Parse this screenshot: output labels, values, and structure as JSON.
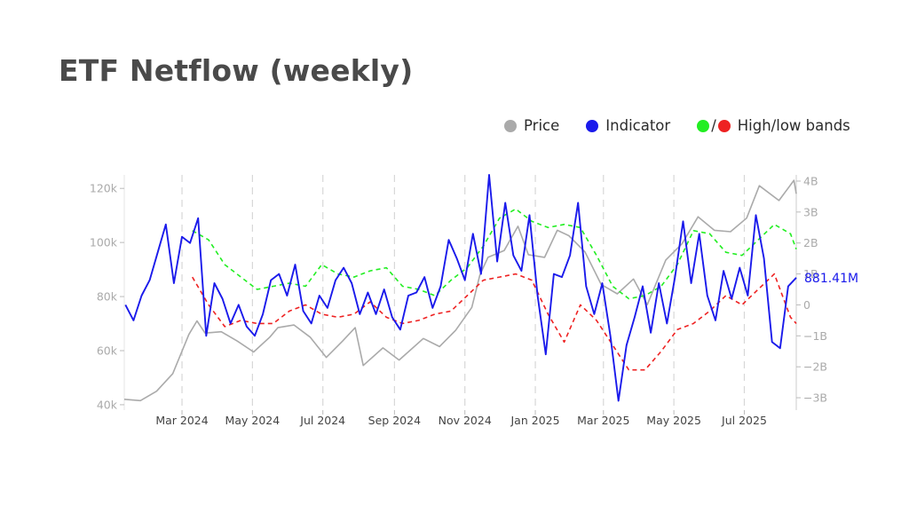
{
  "title": "ETF Netflow (weekly)",
  "legend": {
    "price": "Price",
    "indicator": "Indicator",
    "bands_slash": "/",
    "bands": "High/low bands"
  },
  "colors": {
    "price": "#aaaaaa",
    "indicator": "#1a1aeb",
    "high_band": "#22ee22",
    "low_band": "#ee2222"
  },
  "chart_data": {
    "type": "line",
    "x_axis": {
      "type": "date",
      "range": [
        "2024-01-11",
        "2025-08-15"
      ],
      "tick_labels": [
        "Mar 2024",
        "May 2024",
        "Jul 2024",
        "Sep 2024",
        "Nov 2024",
        "Jan 2025",
        "Mar 2025",
        "May 2025",
        "Jul 2025"
      ],
      "tick_dates": [
        "2024-03-01",
        "2024-05-01",
        "2024-07-01",
        "2024-09-01",
        "2024-11-01",
        "2025-01-01",
        "2025-03-01",
        "2025-05-01",
        "2025-07-01"
      ]
    },
    "y_left": {
      "series": "Price",
      "range": [
        38000,
        125000
      ],
      "ticks": [
        40000,
        60000,
        80000,
        100000,
        120000
      ],
      "tick_labels": [
        "40k",
        "60k",
        "80k",
        "100k",
        "120k"
      ]
    },
    "y_right": {
      "series": [
        "Indicator",
        "High/low bands"
      ],
      "range": [
        -3.4,
        4.2
      ],
      "ticks": [
        -3,
        -2,
        -1,
        0,
        1,
        2,
        3,
        4
      ],
      "tick_labels": [
        "−3B",
        "−2B",
        "−1B",
        "0",
        "1B",
        "2B",
        "3B",
        "4B"
      ]
    },
    "last_value_label": "881.41M",
    "series": [
      {
        "name": "Price",
        "axis": "left",
        "points": [
          [
            "2024-01-11",
            42000
          ],
          [
            "2024-01-25",
            41500
          ],
          [
            "2024-02-08",
            45000
          ],
          [
            "2024-02-22",
            51500
          ],
          [
            "2024-03-07",
            66000
          ],
          [
            "2024-03-14",
            71000
          ],
          [
            "2024-03-21",
            66500
          ],
          [
            "2024-04-04",
            67000
          ],
          [
            "2024-04-18",
            63500
          ],
          [
            "2024-05-02",
            59500
          ],
          [
            "2024-05-16",
            65000
          ],
          [
            "2024-05-23",
            68500
          ],
          [
            "2024-06-06",
            69500
          ],
          [
            "2024-06-20",
            65000
          ],
          [
            "2024-07-04",
            57500
          ],
          [
            "2024-07-18",
            63500
          ],
          [
            "2024-07-29",
            68500
          ],
          [
            "2024-08-05",
            54500
          ],
          [
            "2024-08-22",
            61000
          ],
          [
            "2024-09-05",
            56500
          ],
          [
            "2024-09-26",
            64500
          ],
          [
            "2024-10-10",
            61500
          ],
          [
            "2024-10-24",
            67500
          ],
          [
            "2024-11-07",
            76000
          ],
          [
            "2024-11-14",
            88000
          ],
          [
            "2024-11-21",
            94500
          ],
          [
            "2024-12-05",
            97000
          ],
          [
            "2024-12-17",
            106000
          ],
          [
            "2024-12-26",
            95500
          ],
          [
            "2025-01-09",
            94500
          ],
          [
            "2025-01-20",
            104500
          ],
          [
            "2025-01-30",
            102500
          ],
          [
            "2025-02-13",
            96500
          ],
          [
            "2025-02-27",
            84500
          ],
          [
            "2025-03-13",
            81000
          ],
          [
            "2025-03-27",
            86500
          ],
          [
            "2025-04-08",
            77000
          ],
          [
            "2025-04-24",
            93500
          ],
          [
            "2025-05-08",
            99500
          ],
          [
            "2025-05-22",
            109500
          ],
          [
            "2025-06-05",
            104500
          ],
          [
            "2025-06-19",
            104000
          ],
          [
            "2025-07-03",
            109000
          ],
          [
            "2025-07-14",
            121000
          ],
          [
            "2025-07-31",
            115500
          ],
          [
            "2025-08-13",
            123000
          ],
          [
            "2025-08-15",
            118000
          ]
        ]
      },
      {
        "name": "Indicator",
        "axis": "right",
        "unit": "B",
        "points": [
          [
            "2024-01-12",
            0.0
          ],
          [
            "2024-01-19",
            -0.5
          ],
          [
            "2024-01-26",
            0.3
          ],
          [
            "2024-02-02",
            0.8
          ],
          [
            "2024-02-09",
            1.7
          ],
          [
            "2024-02-16",
            2.6
          ],
          [
            "2024-02-23",
            0.7
          ],
          [
            "2024-03-01",
            2.2
          ],
          [
            "2024-03-08",
            2.0
          ],
          [
            "2024-03-15",
            2.8
          ],
          [
            "2024-03-22",
            -1.0
          ],
          [
            "2024-03-29",
            0.7
          ],
          [
            "2024-04-05",
            0.2
          ],
          [
            "2024-04-12",
            -0.6
          ],
          [
            "2024-04-19",
            0.0
          ],
          [
            "2024-04-26",
            -0.7
          ],
          [
            "2024-05-03",
            -1.0
          ],
          [
            "2024-05-10",
            -0.3
          ],
          [
            "2024-05-17",
            0.8
          ],
          [
            "2024-05-24",
            1.0
          ],
          [
            "2024-05-31",
            0.3
          ],
          [
            "2024-06-07",
            1.3
          ],
          [
            "2024-06-14",
            -0.2
          ],
          [
            "2024-06-21",
            -0.6
          ],
          [
            "2024-06-28",
            0.3
          ],
          [
            "2024-07-05",
            -0.1
          ],
          [
            "2024-07-12",
            0.8
          ],
          [
            "2024-07-19",
            1.2
          ],
          [
            "2024-07-26",
            0.7
          ],
          [
            "2024-08-02",
            -0.3
          ],
          [
            "2024-08-09",
            0.4
          ],
          [
            "2024-08-16",
            -0.3
          ],
          [
            "2024-08-23",
            0.5
          ],
          [
            "2024-08-30",
            -0.4
          ],
          [
            "2024-09-06",
            -0.8
          ],
          [
            "2024-09-13",
            0.3
          ],
          [
            "2024-09-20",
            0.4
          ],
          [
            "2024-09-27",
            0.9
          ],
          [
            "2024-10-04",
            -0.1
          ],
          [
            "2024-10-11",
            0.6
          ],
          [
            "2024-10-18",
            2.1
          ],
          [
            "2024-10-25",
            1.5
          ],
          [
            "2024-11-01",
            0.8
          ],
          [
            "2024-11-08",
            2.3
          ],
          [
            "2024-11-15",
            1.0
          ],
          [
            "2024-11-22",
            4.2
          ],
          [
            "2024-11-29",
            1.4
          ],
          [
            "2024-12-06",
            3.3
          ],
          [
            "2024-12-13",
            1.6
          ],
          [
            "2024-12-20",
            1.1
          ],
          [
            "2024-12-27",
            2.9
          ],
          [
            "2025-01-03",
            0.3
          ],
          [
            "2025-01-10",
            -1.6
          ],
          [
            "2025-01-17",
            1.0
          ],
          [
            "2025-01-24",
            0.9
          ],
          [
            "2025-01-31",
            1.6
          ],
          [
            "2025-02-07",
            3.3
          ],
          [
            "2025-02-14",
            0.6
          ],
          [
            "2025-02-21",
            -0.3
          ],
          [
            "2025-02-28",
            0.7
          ],
          [
            "2025-03-07",
            -1.0
          ],
          [
            "2025-03-14",
            -3.1
          ],
          [
            "2025-03-21",
            -1.3
          ],
          [
            "2025-03-28",
            -0.4
          ],
          [
            "2025-04-04",
            0.6
          ],
          [
            "2025-04-11",
            -0.9
          ],
          [
            "2025-04-18",
            0.7
          ],
          [
            "2025-04-25",
            -0.6
          ],
          [
            "2025-05-02",
            0.9
          ],
          [
            "2025-05-09",
            2.7
          ],
          [
            "2025-05-16",
            0.7
          ],
          [
            "2025-05-23",
            2.3
          ],
          [
            "2025-05-30",
            0.3
          ],
          [
            "2025-06-06",
            -0.5
          ],
          [
            "2025-06-13",
            1.1
          ],
          [
            "2025-06-20",
            0.2
          ],
          [
            "2025-06-27",
            1.2
          ],
          [
            "2025-07-04",
            0.3
          ],
          [
            "2025-07-11",
            2.9
          ],
          [
            "2025-07-18",
            1.5
          ],
          [
            "2025-07-25",
            -1.2
          ],
          [
            "2025-08-01",
            -1.4
          ],
          [
            "2025-08-08",
            0.6
          ],
          [
            "2025-08-15",
            0.88
          ]
        ]
      },
      {
        "name": "High band",
        "axis": "right",
        "unit": "B",
        "points": [
          [
            "2024-03-10",
            2.4
          ],
          [
            "2024-03-24",
            2.1
          ],
          [
            "2024-04-07",
            1.3
          ],
          [
            "2024-04-21",
            0.9
          ],
          [
            "2024-05-05",
            0.5
          ],
          [
            "2024-05-19",
            0.6
          ],
          [
            "2024-06-02",
            0.7
          ],
          [
            "2024-06-16",
            0.6
          ],
          [
            "2024-06-30",
            1.3
          ],
          [
            "2024-07-14",
            1.0
          ],
          [
            "2024-07-28",
            0.9
          ],
          [
            "2024-08-11",
            1.1
          ],
          [
            "2024-08-25",
            1.2
          ],
          [
            "2024-09-08",
            0.6
          ],
          [
            "2024-09-22",
            0.5
          ],
          [
            "2024-10-06",
            0.3
          ],
          [
            "2024-10-20",
            0.8
          ],
          [
            "2024-11-03",
            1.2
          ],
          [
            "2024-11-17",
            1.9
          ],
          [
            "2024-12-01",
            2.8
          ],
          [
            "2024-12-15",
            3.1
          ],
          [
            "2024-12-29",
            2.7
          ],
          [
            "2025-01-12",
            2.5
          ],
          [
            "2025-01-26",
            2.6
          ],
          [
            "2025-02-09",
            2.5
          ],
          [
            "2025-02-23",
            1.6
          ],
          [
            "2025-03-09",
            0.6
          ],
          [
            "2025-03-23",
            0.2
          ],
          [
            "2025-04-06",
            0.3
          ],
          [
            "2025-04-20",
            0.6
          ],
          [
            "2025-05-04",
            1.3
          ],
          [
            "2025-05-18",
            2.4
          ],
          [
            "2025-06-01",
            2.3
          ],
          [
            "2025-06-15",
            1.7
          ],
          [
            "2025-06-29",
            1.6
          ],
          [
            "2025-07-13",
            2.1
          ],
          [
            "2025-07-27",
            2.6
          ],
          [
            "2025-08-10",
            2.3
          ],
          [
            "2025-08-15",
            1.8
          ]
        ]
      },
      {
        "name": "Low band",
        "axis": "right",
        "unit": "B",
        "points": [
          [
            "2024-03-10",
            0.9
          ],
          [
            "2024-03-24",
            0.0
          ],
          [
            "2024-04-07",
            -0.7
          ],
          [
            "2024-04-21",
            -0.5
          ],
          [
            "2024-05-05",
            -0.6
          ],
          [
            "2024-05-19",
            -0.6
          ],
          [
            "2024-06-02",
            -0.2
          ],
          [
            "2024-06-16",
            0.0
          ],
          [
            "2024-06-30",
            -0.3
          ],
          [
            "2024-07-14",
            -0.4
          ],
          [
            "2024-07-28",
            -0.3
          ],
          [
            "2024-08-11",
            0.1
          ],
          [
            "2024-08-25",
            -0.4
          ],
          [
            "2024-09-08",
            -0.6
          ],
          [
            "2024-09-22",
            -0.5
          ],
          [
            "2024-10-06",
            -0.3
          ],
          [
            "2024-10-20",
            -0.2
          ],
          [
            "2024-11-03",
            0.3
          ],
          [
            "2024-11-17",
            0.8
          ],
          [
            "2024-12-01",
            0.9
          ],
          [
            "2024-12-15",
            1.0
          ],
          [
            "2024-12-29",
            0.8
          ],
          [
            "2025-01-12",
            -0.3
          ],
          [
            "2025-01-26",
            -1.2
          ],
          [
            "2025-02-09",
            0.0
          ],
          [
            "2025-02-23",
            -0.5
          ],
          [
            "2025-03-09",
            -1.3
          ],
          [
            "2025-03-23",
            -2.1
          ],
          [
            "2025-04-06",
            -2.1
          ],
          [
            "2025-04-20",
            -1.5
          ],
          [
            "2025-05-04",
            -0.8
          ],
          [
            "2025-05-18",
            -0.6
          ],
          [
            "2025-06-01",
            -0.2
          ],
          [
            "2025-06-15",
            0.3
          ],
          [
            "2025-06-29",
            0.0
          ],
          [
            "2025-07-13",
            0.5
          ],
          [
            "2025-07-27",
            1.0
          ],
          [
            "2025-08-10",
            -0.4
          ],
          [
            "2025-08-15",
            -0.6
          ]
        ]
      }
    ],
    "grid": {
      "vertical_dashed": true,
      "horizontal": false
    }
  }
}
